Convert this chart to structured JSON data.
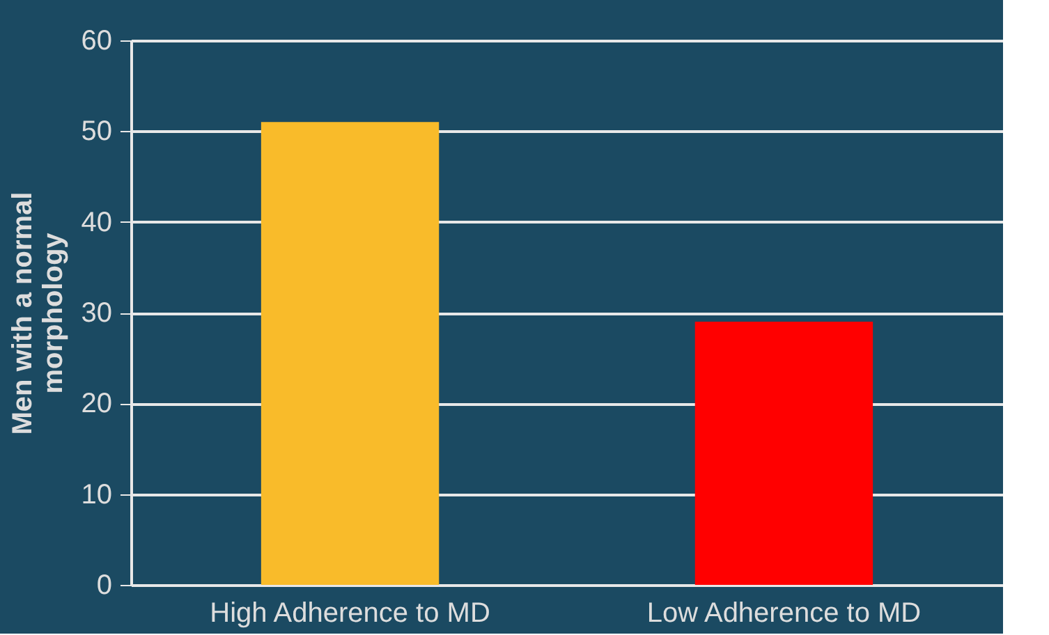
{
  "chart_data": {
    "type": "bar",
    "ylabel": "Men with a normal\nmorphology",
    "categories": [
      "High Adherence to MD",
      "Low Adherence to MD"
    ],
    "values": [
      51,
      29
    ],
    "colors": [
      "#f9bb2a",
      "#ff0000"
    ],
    "ylim": [
      0,
      60
    ],
    "yticks": [
      0,
      10,
      20,
      30,
      40,
      50,
      60
    ],
    "grid": "y",
    "legend": false
  }
}
